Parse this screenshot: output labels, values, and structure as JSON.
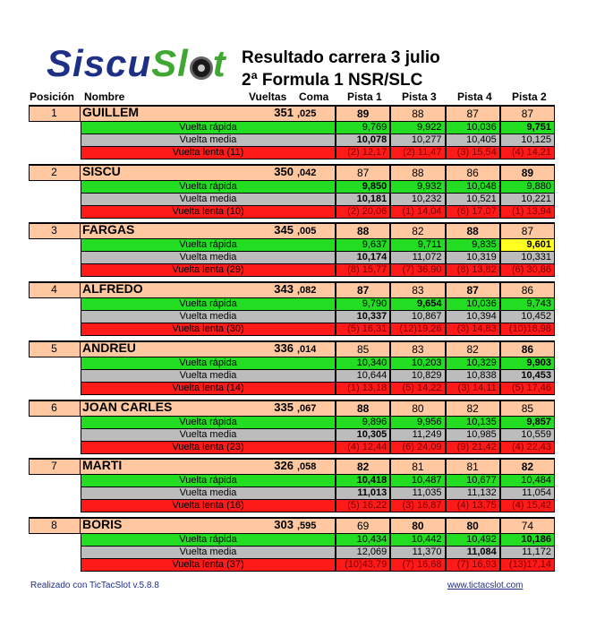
{
  "logo": {
    "part1": "Siscu",
    "part2": "Sl",
    "part3": "t"
  },
  "title": {
    "line1": "Resultado carrera  3 julio",
    "line2": "2ª Formula 1 NSR/SLC"
  },
  "headers": {
    "pos": "Posición",
    "name": "Nombre",
    "laps": "Vueltas",
    "coma": "Coma",
    "tracks": [
      "Pista 1",
      "Pista 3",
      "Pista 4",
      "Pista 2"
    ]
  },
  "row_labels": {
    "fast": "Vuelta rápida",
    "avg": "Vuelta media"
  },
  "colors": {
    "driver_bg": "#ffc8a0",
    "fast_bg": "#22dd22",
    "avg_bg": "#bcbcbc",
    "slow_bg": "#ff1a1a",
    "best_bg": "#ffff22"
  },
  "drivers": [
    {
      "pos": "1",
      "name": "GUILLEM",
      "laps": "351",
      "coma": ",025",
      "track_laps": [
        "89",
        "88",
        "87",
        "87"
      ],
      "fast": [
        "9,769",
        "9,922",
        "10,036",
        "9,751"
      ],
      "avg": [
        "10,078",
        "10,277",
        "10,405",
        "10,125"
      ],
      "slow_label": "Vuelta  lenta  (11)",
      "slow": [
        "(2) 12,17",
        "(2) 11,47",
        "(3) 15,54",
        "(4) 14,21"
      ]
    },
    {
      "pos": "2",
      "name": "SISCU",
      "laps": "350",
      "coma": ",042",
      "track_laps": [
        "87",
        "88",
        "86",
        "89"
      ],
      "fast": [
        "9,850",
        "9,932",
        "10,048",
        "9,880"
      ],
      "avg": [
        "10,181",
        "10,232",
        "10,521",
        "10,221"
      ],
      "slow_label": "Vuelta  lenta  (10)",
      "slow": [
        "(2) 20,06",
        "(1) 14,04",
        "(6) 17,07",
        "(1) 13,94"
      ]
    },
    {
      "pos": "3",
      "name": "FARGAS",
      "laps": "345",
      "coma": ",005",
      "track_laps": [
        "88",
        "82",
        "88",
        "87"
      ],
      "fast": [
        "9,637",
        "9,711",
        "9,835",
        "9,601"
      ],
      "avg": [
        "10,174",
        "11,072",
        "10,319",
        "10,331"
      ],
      "slow_label": "Vuelta  lenta  (29)",
      "slow": [
        "(8) 15,77",
        "(7) 36,90",
        "(8) 13,82",
        "(6) 30,86"
      ]
    },
    {
      "pos": "4",
      "name": "ALFREDO",
      "laps": "343",
      "coma": ",082",
      "track_laps": [
        "87",
        "83",
        "87",
        "86"
      ],
      "fast": [
        "9,790",
        "9,654",
        "10,036",
        "9,743"
      ],
      "avg": [
        "10,337",
        "10,867",
        "10,394",
        "10,452"
      ],
      "slow_label": "Vuelta  lenta  (30)",
      "slow": [
        "(5) 16,31",
        "(12)19,26",
        "(3) 14,83",
        "(10)18,98"
      ]
    },
    {
      "pos": "5",
      "name": "ANDREU",
      "laps": "336",
      "coma": ",014",
      "track_laps": [
        "85",
        "83",
        "82",
        "86"
      ],
      "fast": [
        "10,340",
        "10,203",
        "10,329",
        "9,903"
      ],
      "avg": [
        "10,644",
        "10,829",
        "10,838",
        "10,453"
      ],
      "slow_label": "Vuelta  lenta  (14)",
      "slow": [
        "(1) 13,18",
        "(5) 14,22",
        "(3) 14,11",
        "(5) 17,46"
      ]
    },
    {
      "pos": "6",
      "name": "JOAN CARLES",
      "laps": "335",
      "coma": ",067",
      "track_laps": [
        "88",
        "80",
        "82",
        "85"
      ],
      "fast": [
        "9,896",
        "9,956",
        "10,135",
        "9,857"
      ],
      "avg": [
        "10,305",
        "11,249",
        "10,985",
        "10,559"
      ],
      "slow_label": "Vuelta  lenta  (23)",
      "slow": [
        "(4) 12,44",
        "(6) 24,09",
        "(9) 21,42",
        "(4) 22,43"
      ]
    },
    {
      "pos": "7",
      "name": "MARTI",
      "laps": "326",
      "coma": ",058",
      "track_laps": [
        "82",
        "81",
        "81",
        "82"
      ],
      "fast": [
        "10,418",
        "10,487",
        "10,677",
        "10,484"
      ],
      "avg": [
        "11,013",
        "11,035",
        "11,132",
        "11,054"
      ],
      "slow_label": "Vuelta  lenta  (16)",
      "slow": [
        "(5) 16,22",
        "(3) 16,87",
        "(4) 13,75",
        "(4) 15,42"
      ]
    },
    {
      "pos": "8",
      "name": "BORIS",
      "laps": "303",
      "coma": ",595",
      "track_laps": [
        "69",
        "80",
        "80",
        "74"
      ],
      "fast": [
        "10,434",
        "10,442",
        "10,492",
        "10,186"
      ],
      "avg": [
        "12,069",
        "11,370",
        "11,084",
        "11,172"
      ],
      "slow_label": "Vuelta  lenta  (37)",
      "slow": [
        "(10)43,79",
        "(7) 16,68",
        "(7) 16,93",
        "(13)17,14"
      ]
    }
  ],
  "footer": {
    "left": "Realizado con TicTacSlot v.5.8.8",
    "right": "www.tictacslot.com"
  }
}
